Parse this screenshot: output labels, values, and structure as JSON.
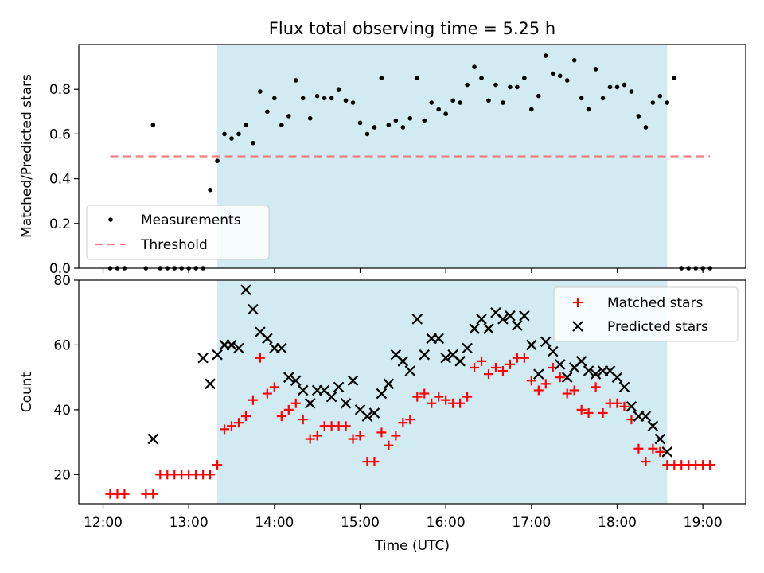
{
  "chart_data": [
    {
      "type": "scatter",
      "title": "Flux total observing time = 5.25 h",
      "xlabel": "",
      "ylabel": "Matched/Predicted stars",
      "xlim": [
        "11:43",
        "19:30"
      ],
      "ylim": [
        0,
        1.0
      ],
      "yticks": [
        0.0,
        0.2,
        0.4,
        0.6,
        0.8
      ],
      "ytick_labels": [
        "0.0",
        "0.2",
        "0.4",
        "0.6",
        "0.8"
      ],
      "xticks": [
        "12:00",
        "13:00",
        "14:00",
        "15:00",
        "16:00",
        "17:00",
        "18:00",
        "19:00"
      ],
      "shaded_interval": [
        "13:20",
        "18:35"
      ],
      "shade_color": "#add8e6",
      "grid": false,
      "legend_position": "lower-left",
      "threshold": {
        "name": "Threshold",
        "y": 0.5,
        "x_range": [
          "12:05",
          "19:05"
        ],
        "color": "#f08080",
        "style": "dashed"
      },
      "series": [
        {
          "name": "Measurements",
          "marker": "dot",
          "color": "#000000",
          "x": [
            "12:05",
            "12:10",
            "12:15",
            "12:30",
            "12:35",
            "12:40",
            "12:45",
            "12:50",
            "12:55",
            "13:00",
            "13:05",
            "13:10",
            "13:15",
            "13:20",
            "13:25",
            "13:30",
            "13:35",
            "13:40",
            "13:45",
            "13:50",
            "13:55",
            "14:00",
            "14:05",
            "14:10",
            "14:15",
            "14:20",
            "14:25",
            "14:30",
            "14:35",
            "14:40",
            "14:45",
            "14:50",
            "14:55",
            "15:00",
            "15:05",
            "15:10",
            "15:15",
            "15:20",
            "15:25",
            "15:30",
            "15:35",
            "15:40",
            "15:45",
            "15:50",
            "15:55",
            "16:00",
            "16:05",
            "16:10",
            "16:15",
            "16:20",
            "16:25",
            "16:30",
            "16:35",
            "16:40",
            "16:45",
            "16:50",
            "16:55",
            "17:00",
            "17:05",
            "17:10",
            "17:15",
            "17:20",
            "17:25",
            "17:30",
            "17:35",
            "17:40",
            "17:45",
            "17:50",
            "17:55",
            "18:00",
            "18:05",
            "18:10",
            "18:15",
            "18:20",
            "18:25",
            "18:30",
            "18:35",
            "18:40",
            "18:45",
            "18:50",
            "18:55",
            "19:00",
            "19:05"
          ],
          "y": [
            0,
            0,
            0,
            0,
            0.64,
            0,
            0,
            0,
            0,
            0,
            0,
            0,
            0.35,
            0.48,
            0.6,
            0.58,
            0.6,
            0.64,
            0.56,
            0.79,
            0.7,
            0.76,
            0.64,
            0.68,
            0.84,
            0.76,
            0.67,
            0.77,
            0.76,
            0.76,
            0.8,
            0.75,
            0.74,
            0.65,
            0.6,
            0.63,
            0.85,
            0.64,
            0.66,
            0.63,
            0.67,
            0.85,
            0.66,
            0.74,
            0.71,
            0.69,
            0.75,
            0.74,
            0.82,
            0.9,
            0.85,
            0.75,
            0.82,
            0.74,
            0.81,
            0.81,
            0.85,
            0.71,
            0.77,
            0.95,
            0.87,
            0.86,
            0.84,
            0.93,
            0.76,
            0.71,
            0.89,
            0.76,
            0.81,
            0.81,
            0.82,
            0.79,
            0.68,
            0.63,
            0.74,
            0.77,
            0.74,
            0.85,
            0,
            0,
            0,
            0,
            0
          ]
        }
      ]
    },
    {
      "type": "scatter",
      "title": "",
      "xlabel": "Time (UTC)",
      "ylabel": "Count",
      "xlim": [
        "11:43",
        "19:30"
      ],
      "ylim": [
        11,
        80
      ],
      "yticks": [
        20,
        40,
        60,
        80
      ],
      "ytick_labels": [
        "20",
        "40",
        "60",
        "80"
      ],
      "xticks": [
        "12:00",
        "13:00",
        "14:00",
        "15:00",
        "16:00",
        "17:00",
        "18:00",
        "19:00"
      ],
      "xtick_labels": [
        "12:00",
        "13:00",
        "14:00",
        "15:00",
        "16:00",
        "17:00",
        "18:00",
        "19:00"
      ],
      "shaded_interval": [
        "13:20",
        "18:35"
      ],
      "grid": false,
      "legend_position": "top-right",
      "series": [
        {
          "name": "Matched stars",
          "marker": "plus",
          "color": "#ff0000",
          "x": [
            "12:05",
            "12:10",
            "12:15",
            "12:30",
            "12:35",
            "12:40",
            "12:45",
            "12:50",
            "12:55",
            "13:00",
            "13:05",
            "13:10",
            "13:15",
            "13:20",
            "13:25",
            "13:30",
            "13:35",
            "13:40",
            "13:45",
            "13:50",
            "13:55",
            "14:00",
            "14:05",
            "14:10",
            "14:15",
            "14:20",
            "14:25",
            "14:30",
            "14:35",
            "14:40",
            "14:45",
            "14:50",
            "14:55",
            "15:00",
            "15:05",
            "15:10",
            "15:15",
            "15:20",
            "15:25",
            "15:30",
            "15:35",
            "15:40",
            "15:45",
            "15:50",
            "15:55",
            "16:00",
            "16:05",
            "16:10",
            "16:15",
            "16:20",
            "16:25",
            "16:30",
            "16:35",
            "16:40",
            "16:45",
            "16:50",
            "16:55",
            "17:00",
            "17:05",
            "17:10",
            "17:15",
            "17:20",
            "17:25",
            "17:30",
            "17:35",
            "17:40",
            "17:45",
            "17:50",
            "17:55",
            "18:00",
            "18:05",
            "18:10",
            "18:15",
            "18:20",
            "18:25",
            "18:30",
            "18:35",
            "18:40",
            "18:45",
            "18:50",
            "18:55",
            "19:00",
            "19:05"
          ],
          "y": [
            14,
            14,
            14,
            14,
            14,
            20,
            20,
            20,
            20,
            20,
            20,
            20,
            20,
            23,
            34,
            35,
            36,
            38,
            43,
            56,
            45,
            47,
            38,
            40,
            42,
            37,
            31,
            32,
            35,
            35,
            35,
            35,
            31,
            32,
            24,
            24,
            33,
            29,
            32,
            36,
            37,
            44,
            45,
            42,
            44,
            43,
            42,
            42,
            44,
            53,
            55,
            51,
            53,
            52,
            54,
            56,
            56,
            49,
            46,
            48,
            53,
            50,
            45,
            46,
            40,
            39,
            47,
            39,
            42,
            42,
            41,
            37,
            28,
            24,
            28,
            27,
            23,
            23,
            23,
            23,
            23,
            23,
            23
          ]
        },
        {
          "name": "Predicted stars",
          "marker": "x",
          "color": "#000000",
          "x": [
            "12:35",
            "13:10",
            "13:15",
            "13:20",
            "13:25",
            "13:30",
            "13:35",
            "13:40",
            "13:45",
            "13:50",
            "13:55",
            "14:00",
            "14:05",
            "14:10",
            "14:15",
            "14:20",
            "14:25",
            "14:30",
            "14:35",
            "14:40",
            "14:45",
            "14:50",
            "14:55",
            "15:00",
            "15:05",
            "15:10",
            "15:15",
            "15:20",
            "15:25",
            "15:30",
            "15:35",
            "15:40",
            "15:45",
            "15:50",
            "15:55",
            "16:00",
            "16:05",
            "16:10",
            "16:15",
            "16:20",
            "16:25",
            "16:30",
            "16:35",
            "16:40",
            "16:45",
            "16:50",
            "16:55",
            "17:00",
            "17:05",
            "17:10",
            "17:15",
            "17:20",
            "17:25",
            "17:30",
            "17:35",
            "17:40",
            "17:45",
            "17:50",
            "17:55",
            "18:00",
            "18:05",
            "18:10",
            "18:15",
            "18:20",
            "18:25",
            "18:30",
            "18:35"
          ],
          "y": [
            31,
            56,
            48,
            57,
            60,
            60,
            59,
            77,
            71,
            64,
            62,
            59,
            59,
            50,
            49,
            46,
            42,
            46,
            46,
            44,
            47,
            42,
            49,
            40,
            38,
            39,
            45,
            48,
            57,
            55,
            52,
            68,
            57,
            62,
            62,
            56,
            57,
            55,
            59,
            65,
            68,
            65,
            70,
            68,
            69,
            66,
            69,
            60,
            51,
            61,
            58,
            54,
            50,
            53,
            55,
            52,
            51,
            52,
            52,
            50,
            47,
            41,
            38,
            38,
            35,
            31,
            27
          ]
        }
      ]
    }
  ]
}
